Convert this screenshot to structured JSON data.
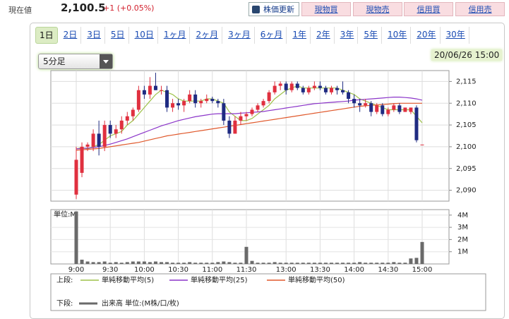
{
  "header": {
    "price_label": "現在値",
    "price": "2,100.5",
    "change": "+1 (+0.05%)",
    "buttons": [
      "株価更新",
      "現物買",
      "現物売",
      "信用買",
      "信用売"
    ]
  },
  "tabs": [
    "1日",
    "2日",
    "3日",
    "5日",
    "10日",
    "1ヶ月",
    "2ヶ月",
    "3ヶ月",
    "6ヶ月",
    "1年",
    "2年",
    "3年",
    "5年",
    "10年",
    "20年",
    "30年"
  ],
  "active_tab": 0,
  "interval": "5分足",
  "timestamp": "20/06/26 15:00",
  "chart_data": {
    "type": "candlestick",
    "up_color": "#e0303f",
    "down_color": "#1f2b82",
    "grid": true,
    "categories": [
      "9:00",
      null,
      null,
      null,
      null,
      null,
      "9:30",
      null,
      null,
      null,
      null,
      null,
      "10:00",
      null,
      null,
      null,
      null,
      null,
      "10:30",
      null,
      null,
      null,
      null,
      null,
      "11:00",
      null,
      null,
      null,
      null,
      null,
      "11:30",
      null,
      null,
      null,
      null,
      null,
      null,
      "13:00",
      null,
      null,
      null,
      null,
      null,
      "13:30",
      null,
      null,
      null,
      null,
      null,
      "14:00",
      null,
      null,
      null,
      null,
      null,
      "14:30",
      null,
      null,
      null,
      null,
      null,
      "15:00"
    ],
    "open": [
      2089,
      2094,
      2100,
      2100,
      2103,
      2100,
      2105,
      2103,
      2104,
      2106,
      2107,
      2108.5,
      2113,
      2112,
      2114,
      2113,
      2113,
      2109,
      2110,
      2109.5,
      2110.5,
      2112,
      2110,
      2110.5,
      2111,
      2110.5,
      2110,
      2106,
      2103,
      2106,
      2107,
      2107.5,
      2108.5,
      2109.5,
      2110.5,
      2112.5,
      2114,
      2114.5,
      2113,
      2114.5,
      2113.5,
      2112.5,
      2113.5,
      2114,
      2113.5,
      2112.5,
      2113.5,
      2113,
      2112.5,
      2111,
      2110,
      2109.5,
      2110,
      2108,
      2109.5,
      2107.5,
      2108.5,
      2109.5,
      2108,
      2108,
      2109,
      2100.5
    ],
    "high": [
      2100,
      2101,
      2101,
      2104,
      2106,
      2106,
      2106,
      2105,
      2107,
      2108,
      2109,
      2114,
      2114,
      2116,
      2117,
      2114,
      2114,
      2111,
      2111,
      2111,
      2113,
      2113,
      2111,
      2112,
      2111.5,
      2111,
      2111,
      2107,
      2107,
      2108,
      2108,
      2109,
      2110,
      2111,
      2113,
      2115,
      2115,
      2115,
      2115,
      2115,
      2114,
      2114,
      2115,
      2115,
      2114,
      2114,
      2114,
      2115,
      2113,
      2112,
      2111,
      2111,
      2110.5,
      2110,
      2110,
      2109,
      2110,
      2110,
      2109,
      2109,
      2109.5,
      2100.5
    ],
    "low": [
      2088,
      2093,
      2099,
      2099,
      2098,
      2099,
      2102,
      2102,
      2103,
      2105,
      2106,
      2108,
      2111,
      2111,
      2113,
      2112,
      2108,
      2108,
      2108.5,
      2108,
      2110,
      2109,
      2109,
      2110,
      2110,
      2109,
      2105,
      2102,
      2103,
      2105,
      2106,
      2107,
      2108,
      2109,
      2110,
      2112,
      2113,
      2112,
      2112.5,
      2113,
      2112,
      2112,
      2113,
      2113,
      2112,
      2112,
      2112,
      2112,
      2110,
      2109,
      2108,
      2109,
      2107,
      2107.5,
      2107,
      2107,
      2108,
      2107.5,
      2108,
      2107.5,
      2101,
      2100.5
    ],
    "close": [
      2097,
      2100,
      2100.5,
      2103,
      2100,
      2105,
      2103,
      2104,
      2106,
      2107,
      2108.5,
      2113,
      2112,
      2114,
      2113,
      2113,
      2109,
      2110,
      2109.5,
      2110.5,
      2112,
      2110,
      2110.5,
      2111,
      2110.5,
      2110,
      2106,
      2103,
      2106,
      2107,
      2107.5,
      2108.5,
      2109.5,
      2110.5,
      2112.5,
      2114,
      2114.5,
      2113,
      2114.5,
      2113.5,
      2112.5,
      2113.5,
      2114,
      2113.5,
      2112.5,
      2113.5,
      2113,
      2112.5,
      2111,
      2110,
      2109.5,
      2110,
      2108,
      2109.5,
      2107.5,
      2108.5,
      2109.5,
      2108,
      2109,
      2109,
      2101.5,
      2100.5
    ],
    "series": [
      {
        "name": "単純移動平均(5)",
        "color": "#9ec24a",
        "values": [
          2099.5,
          2099.8,
          2099.5,
          2100,
          2100.5,
          2101.5,
          2102.5,
          2103,
          2103.5,
          2105,
          2106,
          2107.5,
          2109,
          2110.5,
          2112,
          2113,
          2112.5,
          2112,
          2111,
          2110.5,
          2110.5,
          2110.5,
          2110.5,
          2111,
          2111,
          2110.5,
          2110,
          2108,
          2107,
          2106,
          2106,
          2106.5,
          2107.5,
          2108.5,
          2109.5,
          2111,
          2112,
          2113,
          2113.5,
          2114,
          2113.5,
          2113.5,
          2113.5,
          2113.5,
          2113.5,
          2113.5,
          2113.5,
          2113,
          2112.5,
          2112,
          2111,
          2110.5,
          2110,
          2109.5,
          2109,
          2108.5,
          2108.5,
          2108.5,
          2108.5,
          2108.5,
          2107,
          2105.5
        ]
      },
      {
        "name": "単純移動平均(25)",
        "color": "#8b35c9",
        "values": [
          2099.5,
          2099.6,
          2099.7,
          2099.8,
          2100,
          2100.3,
          2100.6,
          2101,
          2101.4,
          2101.8,
          2102.3,
          2102.8,
          2103.3,
          2103.8,
          2104.3,
          2104.8,
          2105.2,
          2105.6,
          2106,
          2106.3,
          2106.6,
          2106.9,
          2107.1,
          2107.3,
          2107.5,
          2107.6,
          2107.6,
          2107.6,
          2107.6,
          2107.7,
          2107.8,
          2107.9,
          2108,
          2108.1,
          2108.3,
          2108.5,
          2108.7,
          2108.9,
          2109.1,
          2109.3,
          2109.5,
          2109.7,
          2109.9,
          2110,
          2110.1,
          2110.2,
          2110.3,
          2110.4,
          2110.5,
          2110.7,
          2110.8,
          2110.9,
          2111,
          2111.1,
          2111.2,
          2111.3,
          2111.4,
          2111.4,
          2111.3,
          2111.2,
          2111,
          2110.7
        ]
      },
      {
        "name": "単純移動平均(50)",
        "color": "#e0592c",
        "values": [
          2099.2,
          2099.3,
          2099.4,
          2099.5,
          2099.6,
          2099.8,
          2100,
          2100.2,
          2100.4,
          2100.6,
          2100.8,
          2101,
          2101.3,
          2101.6,
          2101.9,
          2102.2,
          2102.5,
          2102.7,
          2102.9,
          2103.1,
          2103.3,
          2103.5,
          2103.7,
          2103.9,
          2104.1,
          2104.3,
          2104.5,
          2104.7,
          2104.9,
          2105.1,
          2105.3,
          2105.5,
          2105.7,
          2105.9,
          2106.1,
          2106.3,
          2106.5,
          2106.7,
          2106.9,
          2107.1,
          2107.3,
          2107.5,
          2107.7,
          2107.9,
          2108.1,
          2108.3,
          2108.5,
          2108.7,
          2108.9,
          2109.1,
          2109.3,
          2109.4,
          2109.5,
          2109.6,
          2109.7,
          2109.8,
          2109.9,
          2110,
          2110,
          2110,
          2110,
          2110
        ]
      }
    ],
    "ylim": [
      2087.5,
      2117.5
    ],
    "yticks": [
      {
        "value": 2090,
        "label": "2,090"
      },
      {
        "value": 2095,
        "label": "2,095"
      },
      {
        "value": 2100,
        "label": "2,100"
      },
      {
        "value": 2105,
        "label": "2,105"
      },
      {
        "value": 2110,
        "label": "2,110"
      },
      {
        "value": 2115,
        "label": "2,115"
      }
    ],
    "upper_label": "上段:",
    "lower_label": "下段:",
    "volume": {
      "type": "bar",
      "name": "出来高 単位:(M株/口/枚)",
      "unit_label": "単位:M",
      "color": "#6a6a6a",
      "values": [
        4.3,
        0.35,
        0.2,
        0.15,
        0.15,
        0.2,
        0.1,
        0.15,
        0.1,
        0.15,
        0.2,
        0.2,
        0.2,
        0.15,
        0.2,
        0.15,
        0.15,
        0.1,
        0.1,
        0.1,
        0.15,
        0.1,
        0.1,
        0.1,
        0.1,
        0.15,
        0.2,
        0.15,
        0.1,
        0.1,
        1.4,
        0.25,
        0.1,
        0.1,
        0.1,
        0.15,
        0.1,
        0.1,
        0.1,
        0.1,
        0.1,
        0.1,
        0.1,
        0.1,
        0.1,
        0.1,
        0.1,
        0.1,
        0.1,
        0.1,
        0.15,
        0.1,
        0.1,
        0.1,
        0.1,
        0.1,
        0.15,
        0.1,
        0.1,
        0.45,
        0.5,
        1.8
      ],
      "ylim": [
        0,
        4.45
      ],
      "yticks": [
        {
          "value": 1,
          "label": "1M"
        },
        {
          "value": 2,
          "label": "2M"
        },
        {
          "value": 3,
          "label": "3M"
        },
        {
          "value": 4,
          "label": "4M"
        }
      ]
    }
  }
}
